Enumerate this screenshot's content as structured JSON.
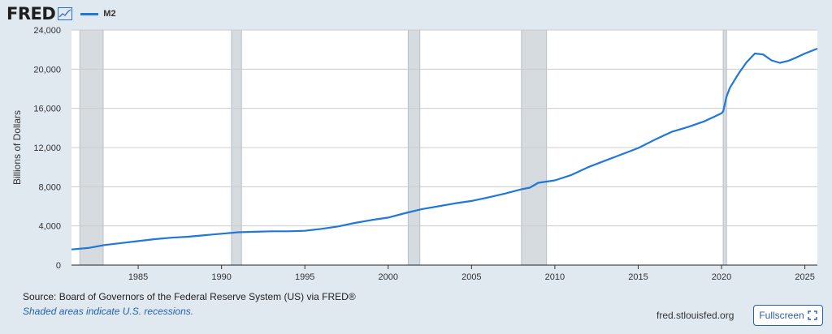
{
  "header": {
    "logo": "FRED",
    "logo_icon": "line-chart-icon",
    "legend_label": "M2"
  },
  "chart_data": {
    "type": "line",
    "title": "",
    "xlabel": "",
    "ylabel": "Billions of Dollars",
    "xlim": [
      1981.0,
      2025.75
    ],
    "ylim": [
      0,
      24000
    ],
    "y_ticks": [
      0,
      4000,
      8000,
      12000,
      16000,
      20000,
      24000
    ],
    "y_tick_labels": [
      "0",
      "4,000",
      "8,000",
      "12,000",
      "16,000",
      "20,000",
      "24,000"
    ],
    "x_ticks": [
      1985,
      1990,
      1995,
      2000,
      2005,
      2010,
      2015,
      2020,
      2025
    ],
    "x_tick_labels": [
      "1985",
      "1990",
      "1995",
      "2000",
      "2005",
      "2010",
      "2015",
      "2020",
      "2025"
    ],
    "grid": true,
    "legend": "top-left",
    "colors": {
      "line": "#1f77d8",
      "recession": "#d6dbe0",
      "grid": "#cccccc",
      "background": "#e1e9f0"
    },
    "recessions": [
      [
        1981.5,
        1982.9
      ],
      [
        1990.6,
        1991.2
      ],
      [
        2001.2,
        2001.9
      ],
      [
        2008.0,
        2009.5
      ],
      [
        2020.1,
        2020.3
      ]
    ],
    "series": [
      {
        "name": "M2",
        "x": [
          1981.0,
          1982.0,
          1983.0,
          1984.0,
          1985.0,
          1986.0,
          1987.0,
          1988.0,
          1989.0,
          1990.0,
          1991.0,
          1992.0,
          1993.0,
          1994.0,
          1995.0,
          1996.0,
          1997.0,
          1998.0,
          1999.0,
          2000.0,
          2001.0,
          2002.0,
          2003.0,
          2004.0,
          2005.0,
          2006.0,
          2007.0,
          2008.0,
          2008.5,
          2009.0,
          2010.0,
          2011.0,
          2012.0,
          2013.0,
          2014.0,
          2015.0,
          2016.0,
          2017.0,
          2018.0,
          2019.0,
          2020.0,
          2020.1,
          2020.3,
          2020.5,
          2021.0,
          2021.5,
          2022.0,
          2022.5,
          2023.0,
          2023.5,
          2024.0,
          2024.5,
          2025.0,
          2025.75
        ],
        "values": [
          1600,
          1750,
          2050,
          2250,
          2450,
          2650,
          2800,
          2900,
          3050,
          3200,
          3350,
          3400,
          3450,
          3450,
          3500,
          3700,
          3950,
          4300,
          4600,
          4850,
          5300,
          5700,
          6000,
          6300,
          6550,
          6900,
          7300,
          7750,
          7900,
          8400,
          8650,
          9200,
          10000,
          10650,
          11300,
          11950,
          12800,
          13600,
          14100,
          14700,
          15500,
          15700,
          17200,
          18100,
          19500,
          20700,
          21600,
          21500,
          20900,
          20650,
          20850,
          21200,
          21600,
          22100
        ]
      }
    ]
  },
  "footer": {
    "source": "Source: Board of Governors of the Federal Reserve System (US) via FRED®",
    "note": "Shaded areas indicate U.S. recessions.",
    "url": "fred.stlouisfed.org",
    "fullscreen_label": "Fullscreen",
    "fullscreen_icon": "expand-icon"
  }
}
